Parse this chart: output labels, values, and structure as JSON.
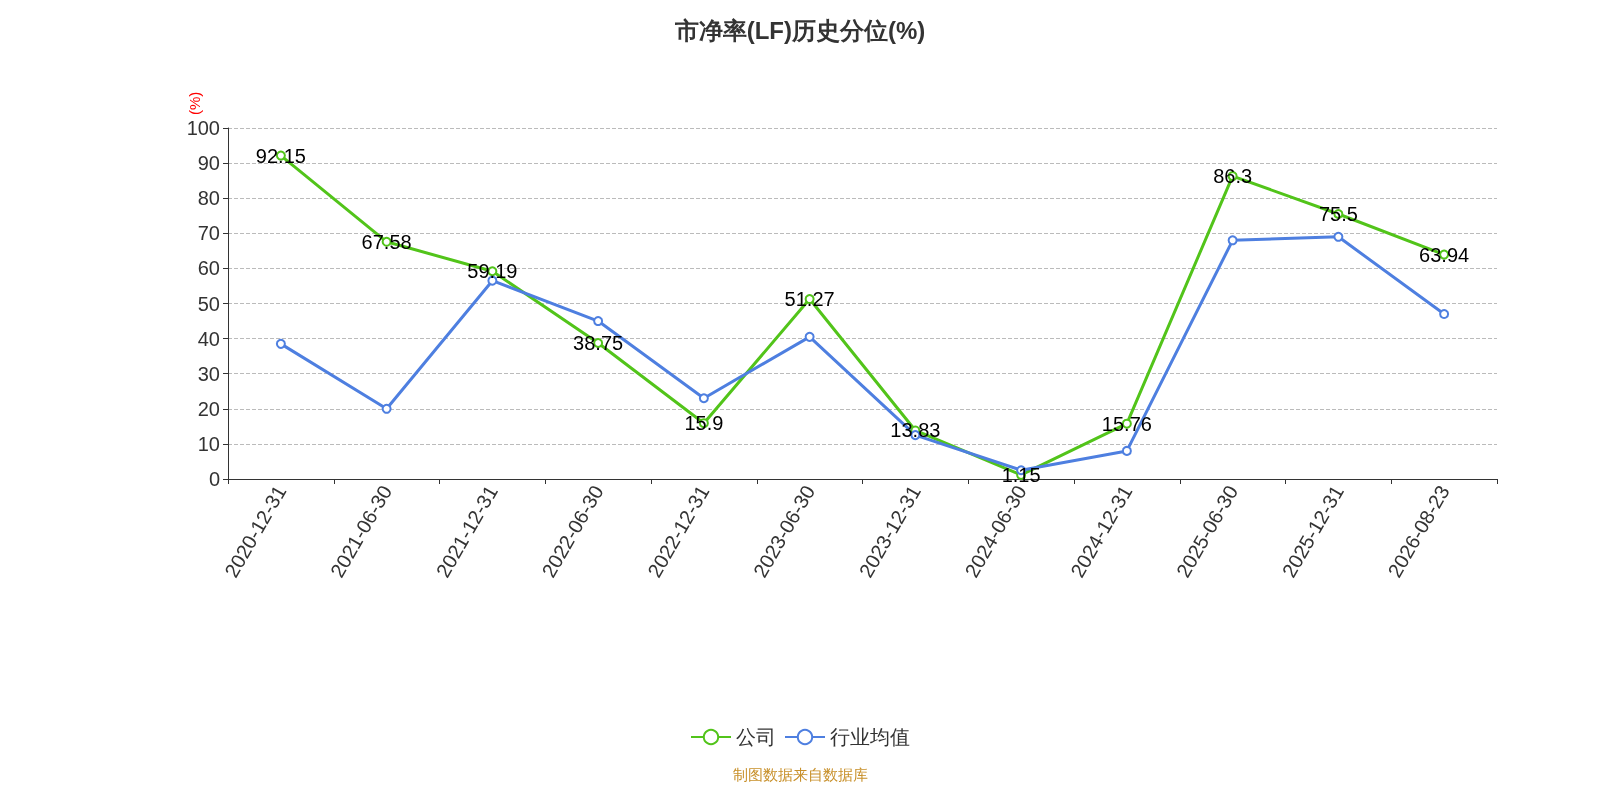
{
  "chart_data": {
    "type": "line",
    "title": "市净率(LF)历史分位(%)",
    "ylabel": "(%)",
    "categories": [
      "2020-12-31",
      "2021-06-30",
      "2021-12-31",
      "2022-06-30",
      "2022-12-31",
      "2023-06-30",
      "2023-12-31",
      "2024-06-30",
      "2024-12-31",
      "2025-06-30",
      "2025-12-31",
      "2026-08-23"
    ],
    "series": [
      {
        "name": "公司",
        "color": "#52c41a",
        "values": [
          92.15,
          67.58,
          59.19,
          38.75,
          15.9,
          51.27,
          13.83,
          1.15,
          15.76,
          86.3,
          75.5,
          63.94
        ],
        "data_labels": true
      },
      {
        "name": "行业均值",
        "color": "#4e7fe0",
        "values": [
          38.5,
          20,
          56.5,
          45,
          23,
          40.5,
          12.5,
          2.5,
          8,
          68,
          69,
          47
        ]
      }
    ],
    "ylim": [
      0,
      100
    ],
    "yticks": [
      0,
      10,
      20,
      30,
      40,
      50,
      60,
      70,
      80,
      90,
      100
    ],
    "grid": "y",
    "legend": "bottom",
    "marker": "circle",
    "line_style": "solid",
    "annotations": [
      "制图数据来自数据库"
    ]
  }
}
